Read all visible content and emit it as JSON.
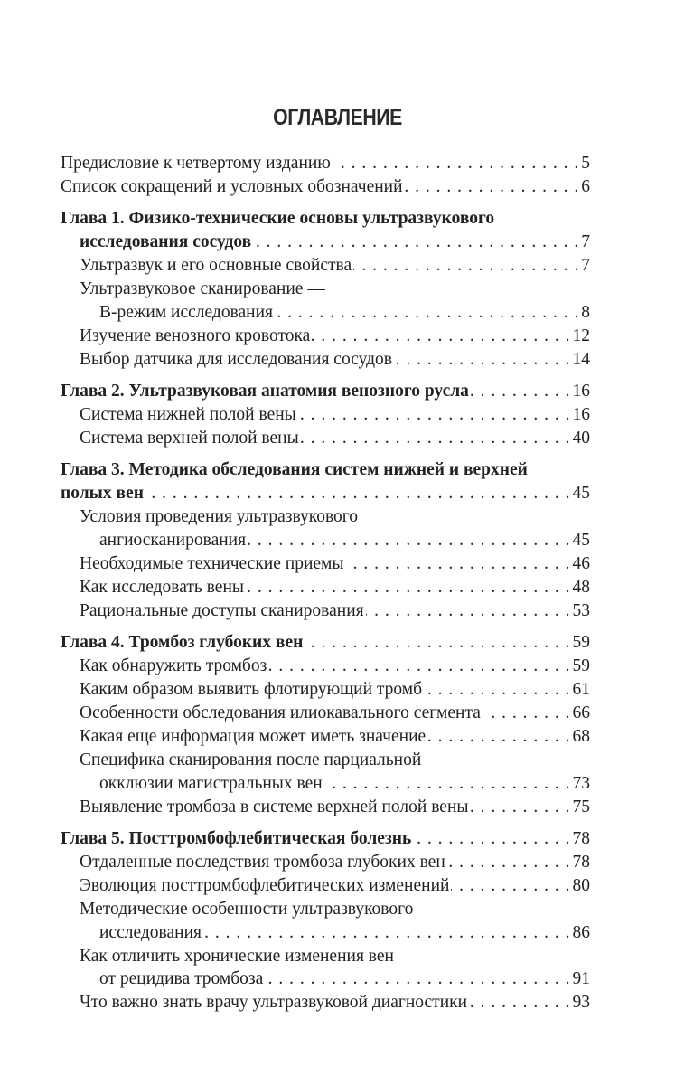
{
  "title": "ОГЛАВЛЕНИЕ",
  "groups": [
    {
      "entries": [
        {
          "lines": [
            "Предисловие к четвертому изданию"
          ],
          "page": "5",
          "level": 0,
          "bold": false
        },
        {
          "lines": [
            "Список сокращений и условных обозначений"
          ],
          "page": "6",
          "level": 0,
          "bold": false
        }
      ]
    },
    {
      "entries": [
        {
          "lines": [
            "Глава 1. Физико-технические основы ультразвукового",
            "исследования сосудов"
          ],
          "page": "7",
          "level": 0,
          "bold": true
        },
        {
          "lines": [
            "Ультразвук и его основные свойства"
          ],
          "page": "7",
          "level": 1,
          "bold": false
        },
        {
          "lines": [
            "Ультразвуковое сканирование —",
            "B-режим исследования"
          ],
          "page": "8",
          "level": 1,
          "bold": false
        },
        {
          "lines": [
            "Изучение венозного кровотока"
          ],
          "page": "12",
          "level": 1,
          "bold": false
        },
        {
          "lines": [
            "Выбор датчика для исследования сосудов"
          ],
          "page": "14",
          "level": 1,
          "bold": false
        }
      ]
    },
    {
      "entries": [
        {
          "lines": [
            "Глава 2. Ультразвуковая анатомия венозного русла"
          ],
          "page": "16",
          "level": 0,
          "bold": true
        },
        {
          "lines": [
            "Система нижней полой вены"
          ],
          "page": "16",
          "level": 1,
          "bold": false
        },
        {
          "lines": [
            "Система верхней полой вены"
          ],
          "page": "40",
          "level": 1,
          "bold": false
        }
      ]
    },
    {
      "entries": [
        {
          "lines": [
            "Глава 3. Методика обследования систем нижней и верхней",
            "полых вен"
          ],
          "page": "45",
          "level": 0,
          "bold": true,
          "wrap_flush": true
        },
        {
          "lines": [
            "Условия проведения ультразвукового",
            "ангиосканирования"
          ],
          "page": "45",
          "level": 1,
          "bold": false
        },
        {
          "lines": [
            "Необходимые технические приемы"
          ],
          "page": "46",
          "level": 1,
          "bold": false
        },
        {
          "lines": [
            "Как исследовать вены"
          ],
          "page": "48",
          "level": 1,
          "bold": false
        },
        {
          "lines": [
            "Рациональные доступы сканирования"
          ],
          "page": "53",
          "level": 1,
          "bold": false
        }
      ]
    },
    {
      "entries": [
        {
          "lines": [
            "Глава 4. Тромбоз глубоких вен"
          ],
          "page": "59",
          "level": 0,
          "bold": true
        },
        {
          "lines": [
            "Как обнаружить тромбоз"
          ],
          "page": "59",
          "level": 1,
          "bold": false
        },
        {
          "lines": [
            "Каким образом выявить флотирующий тромб"
          ],
          "page": "61",
          "level": 1,
          "bold": false
        },
        {
          "lines": [
            "Особенности обследования илиокавального сегмента"
          ],
          "page": "66",
          "level": 1,
          "bold": false
        },
        {
          "lines": [
            "Какая еще информация может иметь значение"
          ],
          "page": "68",
          "level": 1,
          "bold": false
        },
        {
          "lines": [
            "Специфика сканирования после парциальной",
            "окклюзии магистральных вен"
          ],
          "page": "73",
          "level": 1,
          "bold": false
        },
        {
          "lines": [
            "Выявление тромбоза в системе верхней полой вены"
          ],
          "page": "75",
          "level": 1,
          "bold": false
        }
      ]
    },
    {
      "entries": [
        {
          "lines": [
            "Глава 5. Посттромбофлебитическая болезнь"
          ],
          "page": "78",
          "level": 0,
          "bold": true
        },
        {
          "lines": [
            "Отдаленные последствия тромбоза глубоких вен"
          ],
          "page": "78",
          "level": 1,
          "bold": false
        },
        {
          "lines": [
            "Эволюция посттромбофлебитических изменений"
          ],
          "page": "80",
          "level": 1,
          "bold": false
        },
        {
          "lines": [
            "Методические особенности ультразвукового",
            "исследования"
          ],
          "page": "86",
          "level": 1,
          "bold": false
        },
        {
          "lines": [
            "Как отличить хронические изменения вен",
            "от рецидива тромбоза"
          ],
          "page": "91",
          "level": 1,
          "bold": false
        },
        {
          "lines": [
            "Что важно знать врачу ультразвуковой диагностики"
          ],
          "page": "93",
          "level": 1,
          "bold": false
        }
      ]
    }
  ]
}
